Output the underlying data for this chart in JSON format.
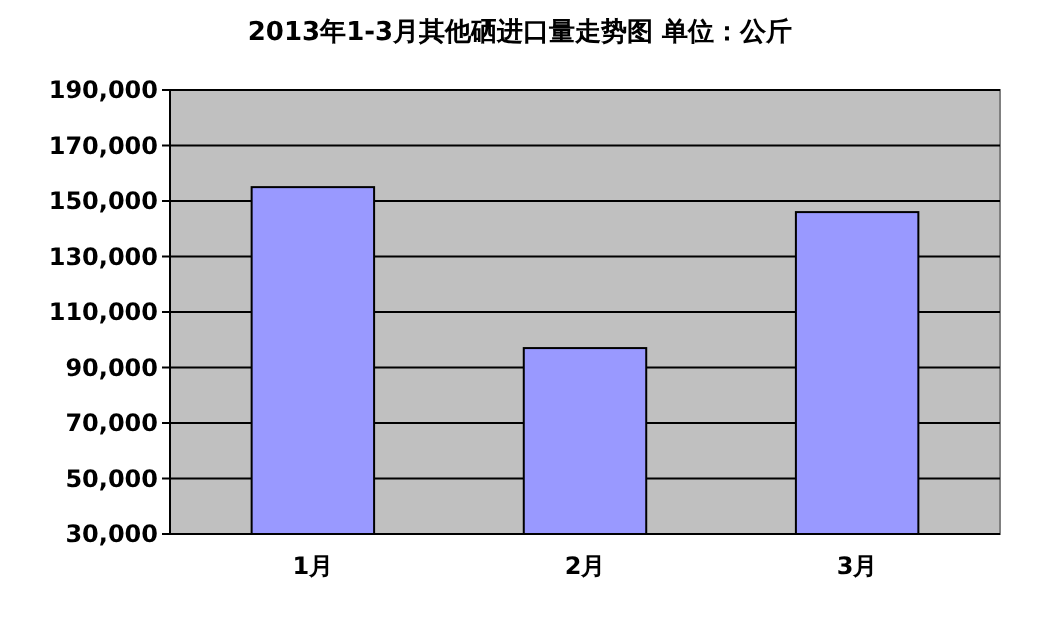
{
  "chart_data": {
    "type": "bar",
    "title": "2013年1-3月其他硒进口量走势图 单位：公斤",
    "categories": [
      "1月",
      "2月",
      "3月"
    ],
    "values": [
      155000,
      97000,
      146000
    ],
    "color": "#9999ff",
    "ylim": [
      30000,
      190000
    ],
    "yticks": [
      {
        "value": 30000,
        "label": "30,000"
      },
      {
        "value": 50000,
        "label": "50,000"
      },
      {
        "value": 70000,
        "label": "70,000"
      },
      {
        "value": 90000,
        "label": "90,000"
      },
      {
        "value": 110000,
        "label": "110,000"
      },
      {
        "value": 130000,
        "label": "130,000"
      },
      {
        "value": 150000,
        "label": "150,000"
      },
      {
        "value": 170000,
        "label": "170,000"
      },
      {
        "value": 190000,
        "label": "190,000"
      }
    ],
    "grid": true
  }
}
